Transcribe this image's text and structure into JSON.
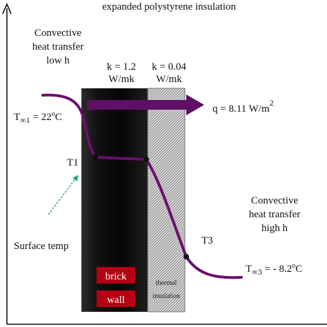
{
  "header": {
    "title": "expanded polystyrene insulation"
  },
  "left_annotation": {
    "line1": "Convective",
    "line2": "heat transfer",
    "line3": "low h"
  },
  "right_annotation": {
    "line1": "Convective",
    "line2": "heat transfer",
    "line3": "high h"
  },
  "conductivity": {
    "brick_k": "k = 1.2",
    "brick_unit": "W/mk",
    "insulation_k": "k = 0.04",
    "insulation_unit": "W/mk"
  },
  "heat_flux": {
    "prefix": "q = 8.11 W/m",
    "exponent": "2"
  },
  "temperatures": {
    "inside": {
      "symbol": "T",
      "subscript": "∞1",
      "value": " = 22",
      "degree": "o",
      "unit": "C"
    },
    "outside": {
      "symbol": "T",
      "subscript": "∞3",
      "value": " = - 8.2",
      "degree": "o",
      "unit": "C"
    },
    "t1": "T1",
    "t3": "T3",
    "surface_temp": "Surface temp"
  },
  "layers": {
    "brick_line1": "brick",
    "brick_line2": "wall",
    "insulation_line1": "thermal",
    "insulation_line2": "insulation"
  },
  "colors": {
    "profile": "#6a0f6e",
    "arrow": "#5e0f66",
    "brick": "#0b0b0b",
    "brick_label_bg": "#b40012",
    "insulation_fill": "#d8d8d8",
    "teal_arrow": "#1aa37a"
  }
}
